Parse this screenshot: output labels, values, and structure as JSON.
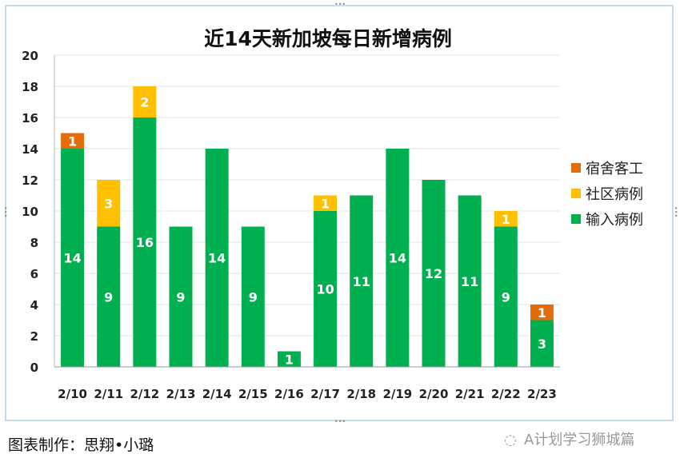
{
  "chart_data": {
    "type": "bar",
    "stacked": true,
    "title": "近14天新加坡每日新增病例",
    "categories": [
      "2/10",
      "2/11",
      "2/12",
      "2/13",
      "2/14",
      "2/15",
      "2/16",
      "2/17",
      "2/18",
      "2/19",
      "2/20",
      "2/21",
      "2/22",
      "2/23"
    ],
    "series": [
      {
        "name": "输入病例",
        "color": "#00b050",
        "values": [
          14,
          9,
          16,
          9,
          14,
          9,
          1,
          10,
          11,
          14,
          12,
          11,
          9,
          3
        ]
      },
      {
        "name": "社区病例",
        "color": "#ffc000",
        "values": [
          0,
          3,
          2,
          0,
          0,
          0,
          0,
          1,
          0,
          0,
          0,
          0,
          1,
          0
        ]
      },
      {
        "name": "宿舍客工",
        "color": "#e36c09",
        "values": [
          1,
          0,
          0,
          0,
          0,
          0,
          0,
          0,
          0,
          0,
          0,
          0,
          0,
          1
        ]
      }
    ],
    "ylim": [
      0,
      20
    ],
    "yticks": [
      0,
      2,
      4,
      6,
      8,
      10,
      12,
      14,
      16,
      18,
      20
    ],
    "grid": true,
    "legend": "right",
    "legend_order": [
      "宿舍客工",
      "社区病例",
      "输入病例"
    ]
  },
  "caption": "图表制作：思翔•小璐",
  "watermark": "A计划学习狮城篇"
}
